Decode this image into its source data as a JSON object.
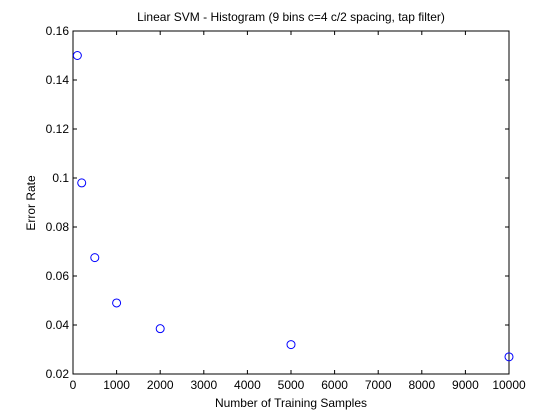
{
  "chart_data": {
    "type": "scatter",
    "title": "Linear SVM - Histogram (9 bins c=4 c/2 spacing, tap filter)",
    "xlabel": "Number of Training Samples",
    "ylabel": "Error Rate",
    "xlim": [
      0,
      10000
    ],
    "ylim": [
      0.02,
      0.16
    ],
    "xticks": [
      0,
      1000,
      2000,
      3000,
      4000,
      5000,
      6000,
      7000,
      8000,
      9000,
      10000
    ],
    "yticks": [
      0.02,
      0.04,
      0.06,
      0.08,
      0.1,
      0.12,
      0.14,
      0.16
    ],
    "grid": false,
    "marker": "circle",
    "marker_color": "#0000ff",
    "points": [
      {
        "x": 100,
        "y": 0.15
      },
      {
        "x": 200,
        "y": 0.098
      },
      {
        "x": 500,
        "y": 0.0675
      },
      {
        "x": 1000,
        "y": 0.049
      },
      {
        "x": 2000,
        "y": 0.0385
      },
      {
        "x": 5000,
        "y": 0.032
      },
      {
        "x": 10000,
        "y": 0.027
      }
    ]
  }
}
